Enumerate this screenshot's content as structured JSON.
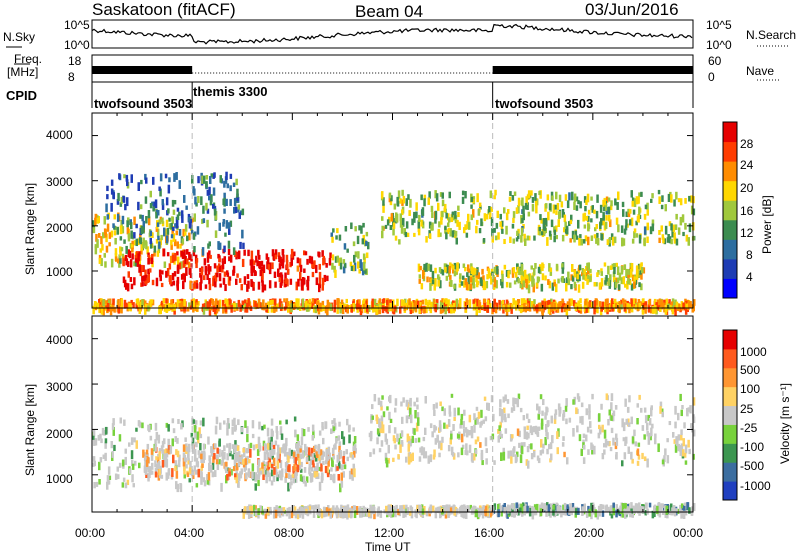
{
  "header": {
    "site": "Saskatoon (fitACF)",
    "beam": "Beam 04",
    "date": "03/Jun/2016"
  },
  "strips": {
    "nsky_label": "N.Sky",
    "nsky_ticks": [
      "10^5",
      "10^0"
    ],
    "nsearch_label": "N.Search",
    "nsearch_ticks": [
      "10^5",
      "10^0"
    ],
    "freq_label_1": "Freq.",
    "freq_label_2": "[MHz]",
    "freq_ticks": [
      "18",
      "8"
    ],
    "nave_label": "Nave",
    "nave_ticks": [
      "60",
      "0"
    ],
    "cpid_label": "CPID",
    "cpid_segments": [
      {
        "name": "twofsound 3503",
        "start_h": 0,
        "end_h": 4
      },
      {
        "name": "themis 3300",
        "start_h": 4,
        "end_h": 16
      },
      {
        "name": "twofsound 3503",
        "start_h": 16,
        "end_h": 24
      }
    ]
  },
  "chart_data": [
    {
      "type": "heatmap",
      "title": "Power",
      "ylabel": "Slant Range [km]",
      "xlim": [
        0,
        24
      ],
      "ylim": [
        180,
        4500
      ],
      "yticks": [
        "4000",
        "3000",
        "2000",
        "1000"
      ],
      "colorbar_label": "Power [dB]",
      "colorbar_ticks": [
        "28",
        "24",
        "20",
        "16",
        "12",
        "8",
        "4"
      ],
      "colorbar_colors": [
        "#0000ff",
        "#1e3cb4",
        "#2d6ea0",
        "#3c8c50",
        "#a0c83c",
        "#ffd700",
        "#ff8c00",
        "#ff3c00",
        "#e60000"
      ],
      "bands": [
        {
          "t0": 0,
          "t1": 4,
          "r0": 1200,
          "r1": 2300,
          "level": 0.6
        },
        {
          "t0": 1.2,
          "t1": 9.5,
          "r0": 700,
          "r1": 1500,
          "level": 0.95
        },
        {
          "t0": 0.5,
          "t1": 6,
          "r0": 1500,
          "r1": 3200,
          "level": 0.3
        },
        {
          "t0": 9.5,
          "t1": 11,
          "r0": 1000,
          "r1": 2100,
          "level": 0.45
        },
        {
          "t0": 11.5,
          "t1": 24,
          "r0": 1700,
          "r1": 2800,
          "level": 0.5
        },
        {
          "t0": 13,
          "t1": 22,
          "r0": 700,
          "r1": 1200,
          "level": 0.55
        },
        {
          "t0": 0,
          "t1": 24,
          "r0": 200,
          "r1": 400,
          "level": 0.7
        }
      ]
    },
    {
      "type": "heatmap",
      "title": "Velocity",
      "ylabel": "Slant Range [km]",
      "xlim": [
        0,
        24
      ],
      "ylim": [
        180,
        4500
      ],
      "yticks": [
        "4000",
        "3000",
        "2000",
        "1000"
      ],
      "colorbar_label": "Velocity [m s⁻¹]",
      "colorbar_ticks": [
        "1000",
        "500",
        "100",
        "25",
        "-25",
        "-100",
        "-500",
        "-1000"
      ],
      "colorbar_colors": [
        "#2040c0",
        "#3c6ea0",
        "#3c9650",
        "#78d23c",
        "#c8c8c8",
        "#ffd264",
        "#ff9632",
        "#ff5a1e",
        "#e60000"
      ],
      "bands": [
        {
          "t0": 0,
          "t1": 10.5,
          "r0": 800,
          "r1": 2300,
          "level": 0.4
        },
        {
          "t0": 2,
          "t1": 10.5,
          "r0": 1000,
          "r1": 1700,
          "level": 0.7
        },
        {
          "t0": 11,
          "t1": 24,
          "r0": 1300,
          "r1": 2800,
          "level": 0.5
        },
        {
          "t0": 16,
          "t1": 24,
          "r0": 200,
          "r1": 400,
          "level": 0.3
        },
        {
          "t0": 6,
          "t1": 16,
          "r0": 200,
          "r1": 350,
          "level": 0.55
        }
      ]
    }
  ],
  "xaxis": {
    "label": "Time UT",
    "ticks": [
      "00:00",
      "04:00",
      "08:00",
      "12:00",
      "16:00",
      "20:00",
      "00:00"
    ]
  },
  "colors": {
    "axis": "#000000",
    "guide": "#bbbbbb"
  }
}
